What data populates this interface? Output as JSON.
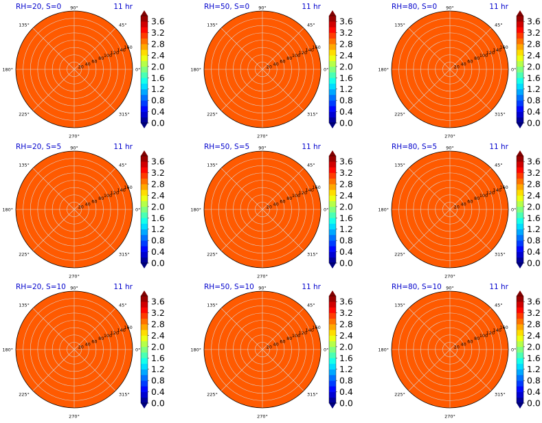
{
  "chart_data": [
    {
      "type": "heatmap",
      "subtype": "polar-contourf",
      "title": "RH=20, S=0",
      "time_label": "11 hr",
      "angle_ticks": [
        "0°",
        "45°",
        "90°",
        "135°",
        "180°",
        "225°",
        "270°",
        "315°"
      ],
      "radial_ticks": [
        20,
        40,
        60,
        80,
        100,
        120,
        140,
        160
      ],
      "rlim": [
        0,
        160
      ],
      "grid": true,
      "fill_value": 3.0,
      "fill_color": "#ff5a00",
      "colorbar": {
        "ticks": [
          0.0,
          0.4,
          0.8,
          1.2,
          1.6,
          2.0,
          2.4,
          2.8,
          3.2,
          3.6
        ],
        "range": [
          0.0,
          3.8
        ],
        "colormap": "jet",
        "extend": "both"
      }
    },
    {
      "type": "heatmap",
      "subtype": "polar-contourf",
      "title": "RH=50, S=0",
      "time_label": "11 hr",
      "angle_ticks": [
        "0°",
        "45°",
        "90°",
        "135°",
        "180°",
        "225°",
        "270°",
        "315°"
      ],
      "radial_ticks": [
        20,
        40,
        60,
        80,
        100,
        120,
        140,
        160
      ],
      "rlim": [
        0,
        160
      ],
      "grid": true,
      "fill_value": 3.0,
      "fill_color": "#ff5a00",
      "colorbar": {
        "ticks": [
          0.0,
          0.4,
          0.8,
          1.2,
          1.6,
          2.0,
          2.4,
          2.8,
          3.2,
          3.6
        ],
        "range": [
          0.0,
          3.8
        ],
        "colormap": "jet",
        "extend": "both"
      }
    },
    {
      "type": "heatmap",
      "subtype": "polar-contourf",
      "title": "RH=80, S=0",
      "time_label": "11 hr",
      "angle_ticks": [
        "0°",
        "45°",
        "90°",
        "135°",
        "180°",
        "225°",
        "270°",
        "315°"
      ],
      "radial_ticks": [
        20,
        40,
        60,
        80,
        100,
        120,
        140,
        160
      ],
      "rlim": [
        0,
        160
      ],
      "grid": true,
      "fill_value": 3.0,
      "fill_color": "#ff5a00",
      "colorbar": {
        "ticks": [
          0.0,
          0.4,
          0.8,
          1.2,
          1.6,
          2.0,
          2.4,
          2.8,
          3.2,
          3.6
        ],
        "range": [
          0.0,
          3.8
        ],
        "colormap": "jet",
        "extend": "both"
      }
    },
    {
      "type": "heatmap",
      "subtype": "polar-contourf",
      "title": "RH=20, S=5",
      "time_label": "11 hr",
      "angle_ticks": [
        "0°",
        "45°",
        "90°",
        "135°",
        "180°",
        "225°",
        "270°",
        "315°"
      ],
      "radial_ticks": [
        20,
        40,
        60,
        80,
        100,
        120,
        140,
        160
      ],
      "rlim": [
        0,
        160
      ],
      "grid": true,
      "fill_value": 3.0,
      "fill_color": "#ff5a00",
      "colorbar": {
        "ticks": [
          0.0,
          0.4,
          0.8,
          1.2,
          1.6,
          2.0,
          2.4,
          2.8,
          3.2,
          3.6
        ],
        "range": [
          0.0,
          3.8
        ],
        "colormap": "jet",
        "extend": "both"
      }
    },
    {
      "type": "heatmap",
      "subtype": "polar-contourf",
      "title": "RH=50, S=5",
      "time_label": "11 hr",
      "angle_ticks": [
        "0°",
        "45°",
        "90°",
        "135°",
        "180°",
        "225°",
        "270°",
        "315°"
      ],
      "radial_ticks": [
        20,
        40,
        60,
        80,
        100,
        120,
        140,
        160
      ],
      "rlim": [
        0,
        160
      ],
      "grid": true,
      "fill_value": 3.0,
      "fill_color": "#ff5a00",
      "colorbar": {
        "ticks": [
          0.0,
          0.4,
          0.8,
          1.2,
          1.6,
          2.0,
          2.4,
          2.8,
          3.2,
          3.6
        ],
        "range": [
          0.0,
          3.8
        ],
        "colormap": "jet",
        "extend": "both"
      }
    },
    {
      "type": "heatmap",
      "subtype": "polar-contourf",
      "title": "RH=80, S=5",
      "time_label": "11 hr",
      "angle_ticks": [
        "0°",
        "45°",
        "90°",
        "135°",
        "180°",
        "225°",
        "270°",
        "315°"
      ],
      "radial_ticks": [
        20,
        40,
        60,
        80,
        100,
        120,
        140,
        160
      ],
      "rlim": [
        0,
        160
      ],
      "grid": true,
      "fill_value": 3.0,
      "fill_color": "#ff5a00",
      "colorbar": {
        "ticks": [
          0.0,
          0.4,
          0.8,
          1.2,
          1.6,
          2.0,
          2.4,
          2.8,
          3.2,
          3.6
        ],
        "range": [
          0.0,
          3.8
        ],
        "colormap": "jet",
        "extend": "both"
      }
    },
    {
      "type": "heatmap",
      "subtype": "polar-contourf",
      "title": "RH=20, S=10",
      "time_label": "11 hr",
      "angle_ticks": [
        "0°",
        "45°",
        "90°",
        "135°",
        "180°",
        "225°",
        "270°",
        "315°"
      ],
      "radial_ticks": [
        20,
        40,
        60,
        80,
        100,
        120,
        140,
        160
      ],
      "rlim": [
        0,
        160
      ],
      "grid": true,
      "fill_value": 3.0,
      "fill_color": "#ff5a00",
      "colorbar": {
        "ticks": [
          0.0,
          0.4,
          0.8,
          1.2,
          1.6,
          2.0,
          2.4,
          2.8,
          3.2,
          3.6
        ],
        "range": [
          0.0,
          3.8
        ],
        "colormap": "jet",
        "extend": "both"
      }
    },
    {
      "type": "heatmap",
      "subtype": "polar-contourf",
      "title": "RH=50, S=10",
      "time_label": "11 hr",
      "angle_ticks": [
        "0°",
        "45°",
        "90°",
        "135°",
        "180°",
        "225°",
        "270°",
        "315°"
      ],
      "radial_ticks": [
        20,
        40,
        60,
        80,
        100,
        120,
        140,
        160
      ],
      "rlim": [
        0,
        160
      ],
      "grid": true,
      "fill_value": 3.0,
      "fill_color": "#ff5a00",
      "colorbar": {
        "ticks": [
          0.0,
          0.4,
          0.8,
          1.2,
          1.6,
          2.0,
          2.4,
          2.8,
          3.2,
          3.6
        ],
        "range": [
          0.0,
          3.8
        ],
        "colormap": "jet",
        "extend": "both"
      }
    },
    {
      "type": "heatmap",
      "subtype": "polar-contourf",
      "title": "RH=80, S=10",
      "time_label": "11 hr",
      "angle_ticks": [
        "0°",
        "45°",
        "90°",
        "135°",
        "180°",
        "225°",
        "270°",
        "315°"
      ],
      "radial_ticks": [
        20,
        40,
        60,
        80,
        100,
        120,
        140,
        160
      ],
      "rlim": [
        0,
        160
      ],
      "grid": true,
      "fill_value": 3.0,
      "fill_color": "#ff5a00",
      "colorbar": {
        "ticks": [
          0.0,
          0.4,
          0.8,
          1.2,
          1.6,
          2.0,
          2.4,
          2.8,
          3.2,
          3.6
        ],
        "range": [
          0.0,
          3.8
        ],
        "colormap": "jet",
        "extend": "both"
      }
    }
  ],
  "colors": {
    "title": "#0000cc",
    "grid": "#d9d9d9",
    "edge": "#000000"
  }
}
